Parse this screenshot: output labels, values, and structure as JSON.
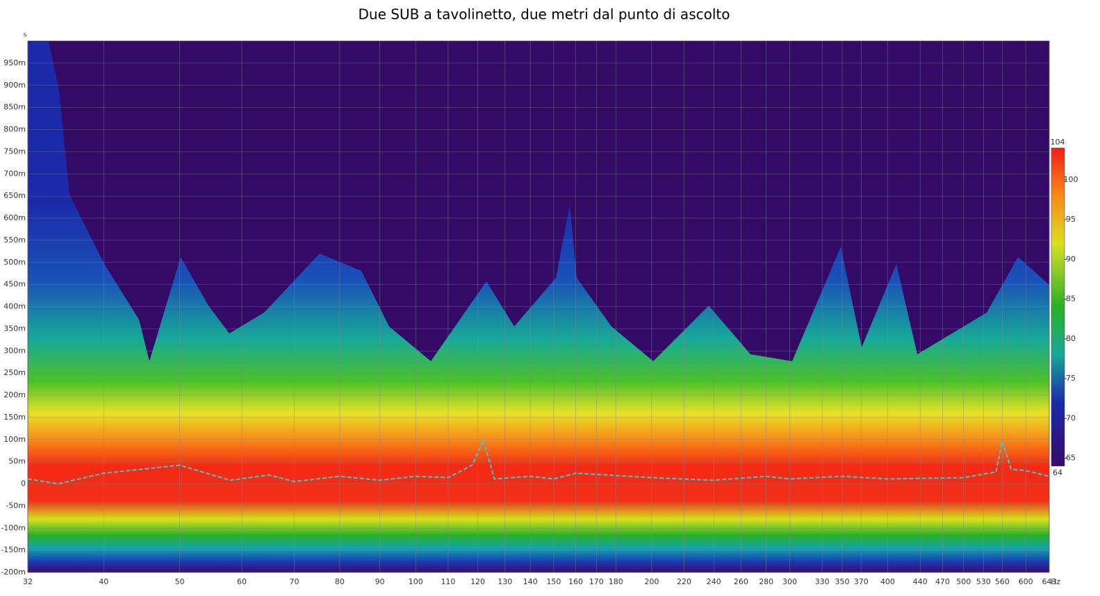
{
  "chart_data": {
    "type": "spectrogram",
    "title": "Due SUB a tavolinetto, due metri dal punto di ascolto",
    "y_unit": "s",
    "x_unit": "Hz",
    "log_x": true,
    "grid": true,
    "xlim": [
      32,
      643
    ],
    "xticks": [
      32,
      40,
      50,
      60,
      70,
      80,
      90,
      100,
      110,
      120,
      130,
      140,
      150,
      160,
      170,
      180,
      200,
      220,
      240,
      260,
      280,
      300,
      330,
      350,
      370,
      400,
      440,
      470,
      500,
      530,
      560,
      600,
      643
    ],
    "ylim": [
      -0.2,
      1.0
    ],
    "yticks": [
      {
        "value": -0.2,
        "label": "-200m"
      },
      {
        "value": -0.15,
        "label": "-150m"
      },
      {
        "value": -0.1,
        "label": "-100m"
      },
      {
        "value": -0.05,
        "label": "-50m"
      },
      0,
      {
        "value": 0.05,
        "label": "50m"
      },
      {
        "value": 0.1,
        "label": "100m"
      },
      {
        "value": 0.15,
        "label": "150m"
      },
      {
        "value": 0.2,
        "label": "200m"
      },
      {
        "value": 0.25,
        "label": "250m"
      },
      {
        "value": 0.3,
        "label": "300m"
      },
      {
        "value": 0.35,
        "label": "350m"
      },
      {
        "value": 0.4,
        "label": "400m"
      },
      {
        "value": 0.45,
        "label": "450m"
      },
      {
        "value": 0.5,
        "label": "500m"
      },
      {
        "value": 0.55,
        "label": "550m"
      },
      {
        "value": 0.6,
        "label": "600m"
      },
      {
        "value": 0.65,
        "label": "650m"
      },
      {
        "value": 0.7,
        "label": "700m"
      },
      {
        "value": 0.75,
        "label": "750m"
      },
      {
        "value": 0.8,
        "label": "800m"
      },
      {
        "value": 0.85,
        "label": "850m"
      },
      {
        "value": 0.9,
        "label": "900m"
      },
      {
        "value": 0.95,
        "label": "950m"
      }
    ],
    "clim": [
      64,
      104
    ],
    "cticks": [
      65,
      70,
      75,
      80,
      85,
      90,
      95,
      100
    ],
    "series": [
      {
        "color": "#3cc8d8",
        "x": [
          32,
          35,
          40,
          50,
          58,
          65,
          70,
          80,
          90,
          100,
          110,
          118,
          122,
          126,
          140,
          150,
          160,
          200,
          240,
          280,
          300,
          350,
          400,
          500,
          550,
          560,
          575,
          600,
          643
        ],
        "values": [
          0.011,
          0,
          0.024,
          0.042,
          0.008,
          0.02,
          0.005,
          0.017,
          0.008,
          0.017,
          0.014,
          0.042,
          0.099,
          0.011,
          0.017,
          0.011,
          0.024,
          0.014,
          0.008,
          0.017,
          0.011,
          0.017,
          0.011,
          0.014,
          0.027,
          0.096,
          0.033,
          0.03,
          0.017
        ]
      }
    ]
  }
}
